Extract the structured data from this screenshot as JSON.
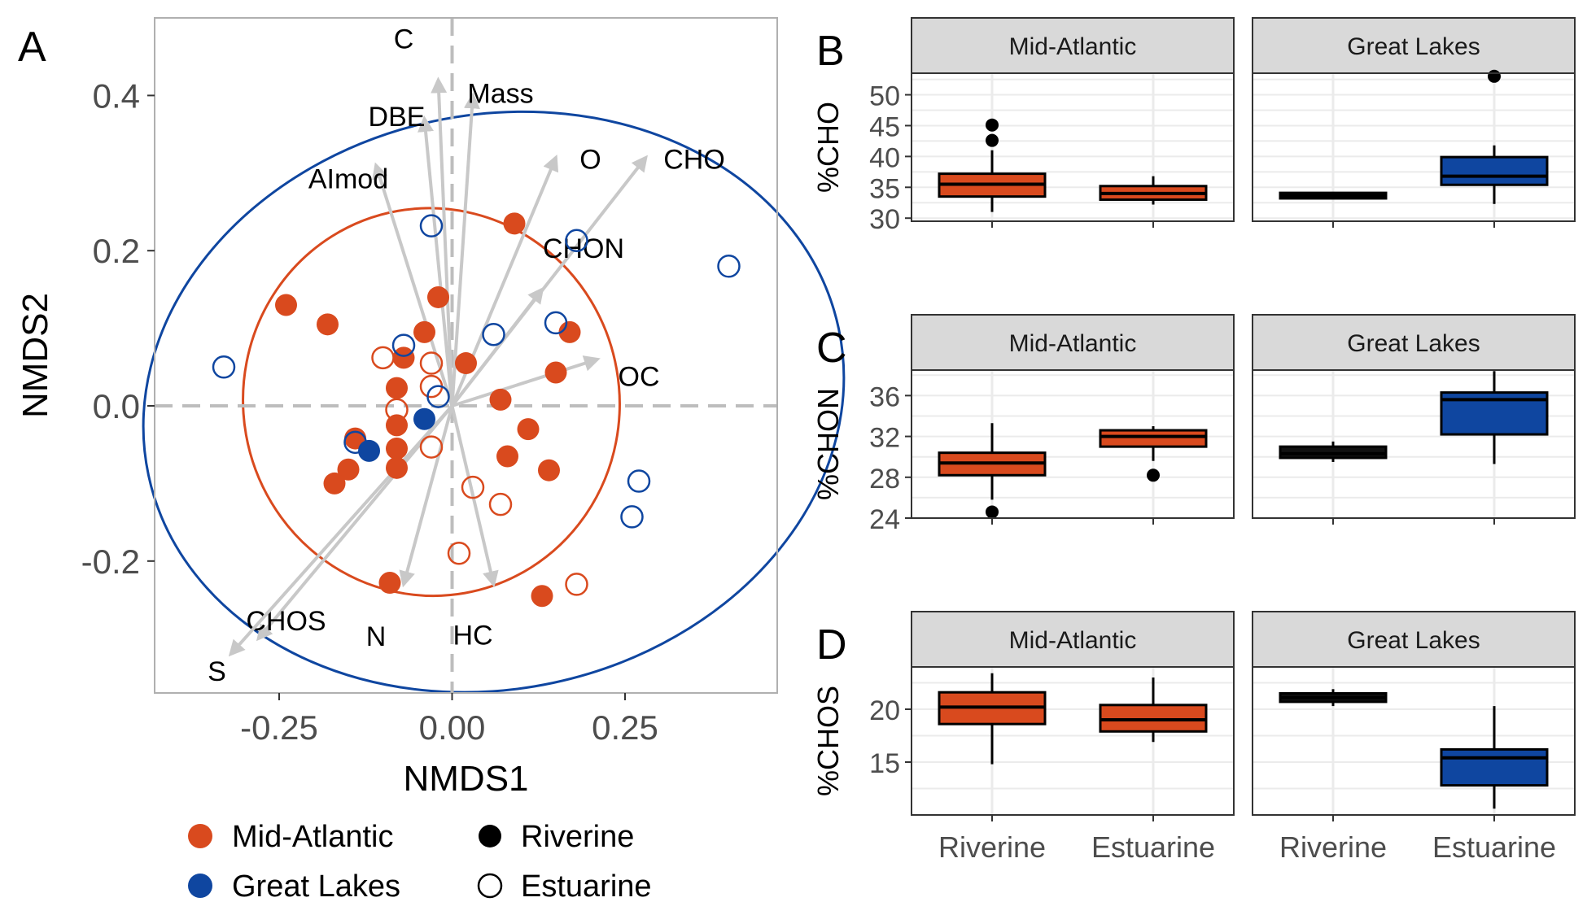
{
  "colors": {
    "mid_atlantic": "#d94a1e",
    "great_lakes": "#0f46a0",
    "ellipse_mid": "#d94a1e",
    "ellipse_great": "#0f46a0",
    "vector": "#c8c8c8",
    "refline": "#bdbdbd",
    "strip_fill": "#d9d9d9",
    "grid": "#ebebeb",
    "frame": "#333333",
    "axis_text": "#4d4d4d"
  },
  "chart_data": [
    {
      "type": "scatter",
      "panel_label": "A",
      "xlabel": "NMDS1",
      "ylabel": "NMDS2",
      "xlim": [
        -0.43,
        0.47
      ],
      "ylim": [
        -0.37,
        0.5
      ],
      "x_ticks": [
        -0.25,
        0.0,
        0.25
      ],
      "x_tick_labels": [
        "-0.25",
        "0.00",
        "0.25"
      ],
      "y_ticks": [
        -0.2,
        0.0,
        0.2,
        0.4
      ],
      "y_tick_labels": [
        "-0.2",
        "0.0",
        "0.2",
        "0.4"
      ],
      "legend": {
        "placement": "bottom",
        "region_entries": [
          {
            "label": "Mid-Atlantic",
            "color": "#d94a1e"
          },
          {
            "label": "Great Lakes",
            "color": "#0f46a0"
          }
        ],
        "type_entries": [
          {
            "label": "Riverine",
            "marker": "filled"
          },
          {
            "label": "Estuarine",
            "marker": "open"
          }
        ]
      },
      "vectors": [
        {
          "label": "C",
          "x": -0.02,
          "y": 0.42,
          "label_x": -0.07,
          "label_y": 0.47
        },
        {
          "label": "Mass",
          "x": 0.03,
          "y": 0.4,
          "label_x": 0.07,
          "label_y": 0.4
        },
        {
          "label": "DBE",
          "x": -0.04,
          "y": 0.37,
          "label_x": -0.08,
          "label_y": 0.37
        },
        {
          "label": "AImod",
          "x": -0.11,
          "y": 0.31,
          "label_x": -0.15,
          "label_y": 0.29
        },
        {
          "label": "O",
          "x": 0.15,
          "y": 0.32,
          "label_x": 0.2,
          "label_y": 0.315
        },
        {
          "label": "CHO",
          "x": 0.28,
          "y": 0.32,
          "label_x": 0.35,
          "label_y": 0.315
        },
        {
          "label": "CHON",
          "x": 0.13,
          "y": 0.15,
          "label_x": 0.19,
          "label_y": 0.2
        },
        {
          "label": "OC",
          "x": 0.21,
          "y": 0.06,
          "label_x": 0.27,
          "label_y": 0.035
        },
        {
          "label": "CHOS",
          "x": -0.28,
          "y": -0.3,
          "label_x": -0.24,
          "label_y": -0.28
        },
        {
          "label": "S",
          "x": -0.32,
          "y": -0.32,
          "label_x": -0.34,
          "label_y": -0.345
        },
        {
          "label": "N",
          "x": -0.07,
          "y": -0.23,
          "label_x": -0.11,
          "label_y": -0.3
        },
        {
          "label": "HC",
          "x": 0.06,
          "y": -0.23,
          "label_x": 0.03,
          "label_y": -0.298
        }
      ],
      "ellipses": [
        {
          "name": "Mid-Atlantic",
          "cx": -0.03,
          "cy": 0.005,
          "rx": 0.272,
          "ry": 0.25,
          "angle_deg": -10
        },
        {
          "name": "Great Lakes",
          "cx": 0.06,
          "cy": 0.005,
          "rx": 0.51,
          "ry": 0.37,
          "angle_deg": -12
        }
      ],
      "series": [
        {
          "name": "Mid-Atlantic Riverine",
          "color": "#d94a1e",
          "marker": "filled",
          "points": [
            [
              -0.24,
              0.13
            ],
            [
              -0.18,
              0.105
            ],
            [
              0.09,
              0.235
            ],
            [
              -0.02,
              0.14
            ],
            [
              -0.04,
              0.095
            ],
            [
              -0.07,
              0.062
            ],
            [
              0.02,
              0.055
            ],
            [
              0.17,
              0.095
            ],
            [
              0.15,
              0.043
            ],
            [
              -0.08,
              0.023
            ],
            [
              0.07,
              0.008
            ],
            [
              -0.08,
              -0.025
            ],
            [
              -0.14,
              -0.042
            ],
            [
              -0.08,
              -0.055
            ],
            [
              -0.15,
              -0.082
            ],
            [
              -0.17,
              -0.1
            ],
            [
              -0.08,
              -0.08
            ],
            [
              0.08,
              -0.065
            ],
            [
              0.11,
              -0.03
            ],
            [
              0.14,
              -0.083
            ],
            [
              -0.09,
              -0.228
            ],
            [
              0.13,
              -0.245
            ]
          ]
        },
        {
          "name": "Mid-Atlantic Estuarine",
          "color": "#d94a1e",
          "marker": "open",
          "points": [
            [
              -0.1,
              0.062
            ],
            [
              -0.03,
              0.055
            ],
            [
              -0.03,
              0.025
            ],
            [
              -0.08,
              -0.005
            ],
            [
              -0.03,
              -0.053
            ],
            [
              0.03,
              -0.105
            ],
            [
              0.07,
              -0.127
            ],
            [
              0.01,
              -0.19
            ],
            [
              0.18,
              -0.23
            ]
          ]
        },
        {
          "name": "Great Lakes Riverine",
          "color": "#0f46a0",
          "marker": "filled",
          "points": [
            [
              -0.12,
              -0.058
            ],
            [
              -0.04,
              -0.017
            ]
          ]
        },
        {
          "name": "Great Lakes Estuarine",
          "color": "#0f46a0",
          "marker": "open",
          "points": [
            [
              -0.03,
              0.232
            ],
            [
              0.18,
              0.213
            ],
            [
              0.4,
              0.18
            ],
            [
              0.06,
              0.092
            ],
            [
              0.15,
              0.107
            ],
            [
              -0.07,
              0.078
            ],
            [
              -0.33,
              0.05
            ],
            [
              -0.02,
              0.012
            ],
            [
              -0.14,
              -0.047
            ],
            [
              0.27,
              -0.097
            ],
            [
              0.26,
              -0.143
            ]
          ]
        }
      ]
    },
    {
      "type": "boxplot",
      "panel_label": "B",
      "ylabel": "%CHO",
      "ylim": [
        29.5,
        53.5
      ],
      "y_ticks": [
        30,
        35,
        40,
        45,
        50
      ],
      "y_tick_labels": [
        "30",
        "35",
        "40",
        "45",
        "50"
      ],
      "facets": [
        {
          "strip": "Mid-Atlantic",
          "boxes": [
            {
              "category": "Riverine",
              "color": "#d94a1e",
              "min": 31,
              "q1": 33.5,
              "median": 35.5,
              "q3": 37.2,
              "max": 41,
              "outliers": [
                42.6,
                45.1
              ]
            },
            {
              "category": "Estuarine",
              "color": "#d94a1e",
              "min": 32.2,
              "q1": 33,
              "median": 34,
              "q3": 35.2,
              "max": 36.8,
              "outliers": []
            }
          ]
        },
        {
          "strip": "Great Lakes",
          "boxes": [
            {
              "category": "Riverine",
              "color": "#111111",
              "min": 33.1,
              "q1": 33.2,
              "median": 33.6,
              "q3": 34.1,
              "max": 34.2,
              "outliers": []
            },
            {
              "category": "Estuarine",
              "color": "#0f46a0",
              "min": 32.3,
              "q1": 35.4,
              "median": 36.8,
              "q3": 39.9,
              "max": 41.8,
              "outliers": [
                53
              ]
            }
          ]
        }
      ]
    },
    {
      "type": "boxplot",
      "panel_label": "C",
      "ylabel": "%CHON",
      "ylim": [
        24,
        38.5
      ],
      "y_ticks": [
        24,
        28,
        32,
        36
      ],
      "y_tick_labels": [
        "24",
        "28",
        "32",
        "36"
      ],
      "facets": [
        {
          "strip": "Mid-Atlantic",
          "boxes": [
            {
              "category": "Riverine",
              "color": "#d94a1e",
              "min": 25.8,
              "q1": 28.2,
              "median": 29.4,
              "q3": 30.4,
              "max": 33.3,
              "outliers": [
                24.6
              ]
            },
            {
              "category": "Estuarine",
              "color": "#d94a1e",
              "min": 29.6,
              "q1": 31,
              "median": 32,
              "q3": 32.6,
              "max": 33,
              "outliers": [
                28.2
              ]
            }
          ]
        },
        {
          "strip": "Great Lakes",
          "boxes": [
            {
              "category": "Riverine",
              "color": "#111111",
              "min": 29.5,
              "q1": 29.9,
              "median": 30.3,
              "q3": 31,
              "max": 31.5,
              "outliers": []
            },
            {
              "category": "Estuarine",
              "color": "#0f46a0",
              "min": 29.3,
              "q1": 32.2,
              "median": 35.6,
              "q3": 36.3,
              "max": 38.4,
              "outliers": []
            }
          ]
        }
      ]
    },
    {
      "type": "boxplot",
      "panel_label": "D",
      "ylabel": "%CHOS",
      "ylim": [
        10,
        24
      ],
      "y_ticks": [
        15,
        20
      ],
      "y_tick_labels": [
        "15",
        "20"
      ],
      "facets": [
        {
          "strip": "Mid-Atlantic",
          "boxes": [
            {
              "category": "Riverine",
              "color": "#d94a1e",
              "min": 14.8,
              "q1": 18.6,
              "median": 20.2,
              "q3": 21.6,
              "max": 23.4,
              "outliers": []
            },
            {
              "category": "Estuarine",
              "color": "#d94a1e",
              "min": 16.9,
              "q1": 17.9,
              "median": 19,
              "q3": 20.4,
              "max": 23,
              "outliers": []
            }
          ]
        },
        {
          "strip": "Great Lakes",
          "boxes": [
            {
              "category": "Riverine",
              "color": "#111111",
              "min": 20.3,
              "q1": 20.7,
              "median": 21.1,
              "q3": 21.5,
              "max": 21.9,
              "outliers": []
            },
            {
              "category": "Estuarine",
              "color": "#0f46a0",
              "min": 10.6,
              "q1": 12.8,
              "median": 15.4,
              "q3": 16.2,
              "max": 20.3,
              "outliers": []
            }
          ]
        }
      ],
      "x_tick_labels": [
        "Riverine",
        "Estuarine"
      ]
    }
  ]
}
